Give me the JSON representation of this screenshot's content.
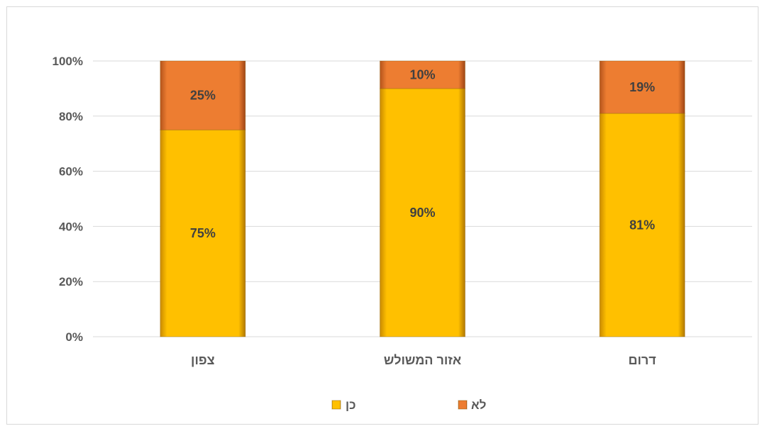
{
  "chart_data": {
    "type": "bar",
    "stacked": "percent",
    "categories": [
      "צפון",
      "אזור המשולש",
      "דרום"
    ],
    "series": [
      {
        "name": "כן",
        "values": [
          75,
          90,
          81
        ],
        "labels": [
          "75%",
          "90%",
          "81%"
        ],
        "color": "#FFC000"
      },
      {
        "name": "לא",
        "values": [
          25,
          10,
          19
        ],
        "labels": [
          "25%",
          "10%",
          "19%"
        ],
        "color": "#ED7D31"
      }
    ],
    "y_ticks": [
      "0%",
      "20%",
      "40%",
      "60%",
      "80%",
      "100%"
    ],
    "ylim": [
      0,
      100
    ],
    "grid": true,
    "legend_position": "bottom",
    "colors": {
      "text": "#595959",
      "gridline": "#d9d9d9",
      "label": "#404040"
    }
  }
}
